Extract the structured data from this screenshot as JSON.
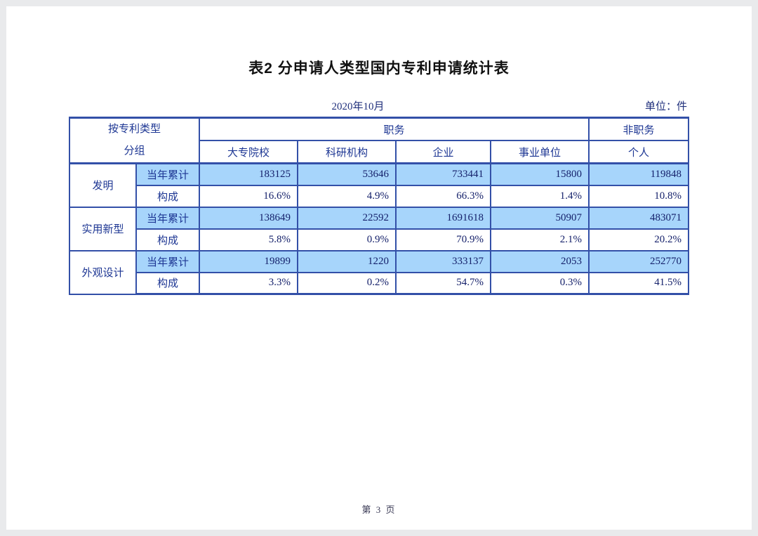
{
  "page": {
    "title": "表2 分申请人类型国内专利申请统计表",
    "period": "2020年10月",
    "unit": "单位：件",
    "footer": "第 3 页"
  },
  "table": {
    "header": {
      "left_line1": "按专利类型",
      "left_line2": "分组",
      "service_group": "职务",
      "non_service": "非职务",
      "columns": [
        "大专院校",
        "科研机构",
        "企业",
        "事业单位",
        "个人"
      ]
    },
    "row_labels": {
      "cumulative": "当年累计",
      "composition": "构成"
    },
    "groups": [
      {
        "type": "发明",
        "cumulative": [
          "183125",
          "53646",
          "733441",
          "15800",
          "119848"
        ],
        "composition": [
          "16.6%",
          "4.9%",
          "66.3%",
          "1.4%",
          "10.8%"
        ]
      },
      {
        "type": "实用新型",
        "cumulative": [
          "138649",
          "22592",
          "1691618",
          "50907",
          "483071"
        ],
        "composition": [
          "5.8%",
          "0.9%",
          "70.9%",
          "2.1%",
          "20.2%"
        ]
      },
      {
        "type": "外观设计",
        "cumulative": [
          "19899",
          "1220",
          "333137",
          "2053",
          "252770"
        ],
        "composition": [
          "3.3%",
          "0.2%",
          "54.7%",
          "0.3%",
          "41.5%"
        ]
      }
    ],
    "colors": {
      "border": "#3350a8",
      "highlight": "#a7d5fb",
      "header_text": "#1d3693",
      "data_text": "#15216b"
    }
  }
}
